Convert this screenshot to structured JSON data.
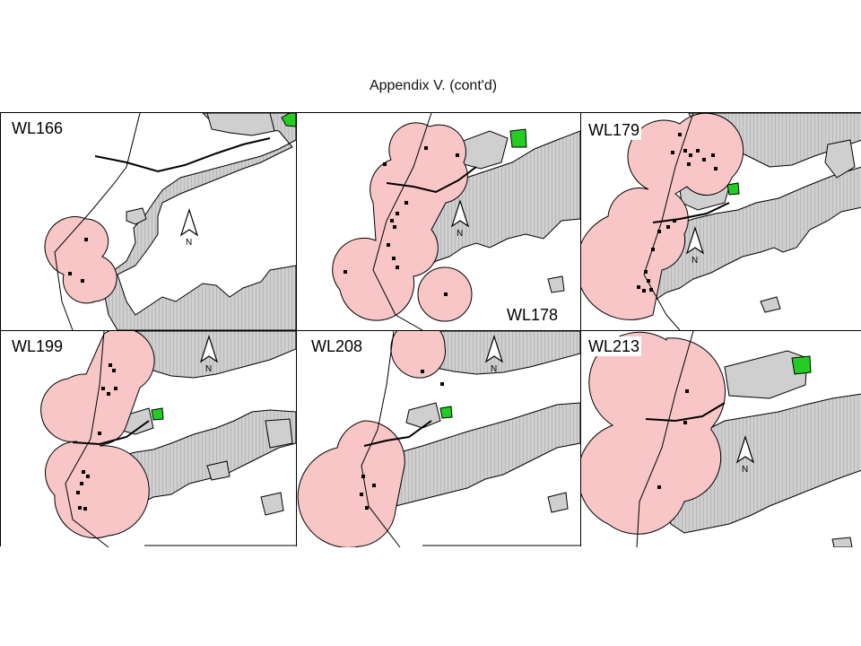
{
  "title": "Appendix V.  (cont'd)",
  "colors": {
    "land": "#cfcfcf",
    "hatch": "#b4b4b4",
    "buffer": "#f8c6c6",
    "protected": "#22cc22",
    "outline": "#000000"
  },
  "icons": {
    "north_arrow": "north-arrow-icon",
    "sighting": "sighting-square-icon"
  },
  "panels": [
    {
      "id": "WL166",
      "label": "WL166",
      "north": "N"
    },
    {
      "id": "WL178",
      "label": "WL178",
      "north": "N"
    },
    {
      "id": "WL179",
      "label": "WL179",
      "north": "N"
    },
    {
      "id": "WL199",
      "label": "WL199",
      "north": "N"
    },
    {
      "id": "WL208",
      "label": "WL208",
      "north": "N"
    },
    {
      "id": "WL213",
      "label": "WL213",
      "north": "N"
    }
  ]
}
